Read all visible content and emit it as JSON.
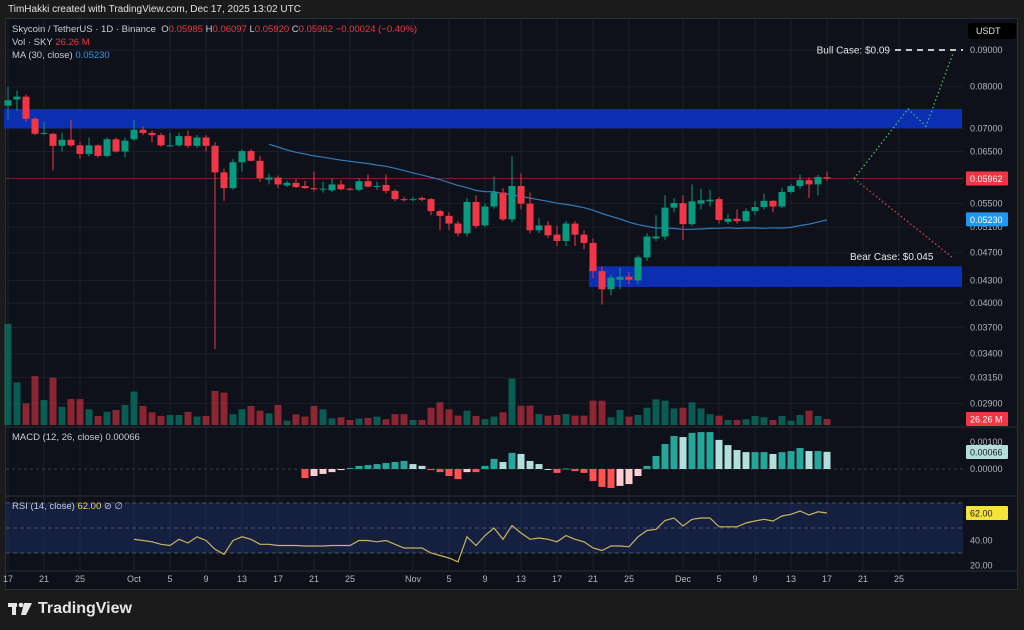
{
  "header": {
    "credit": "TimHakki created with TradingView.com, Dec 17, 2025 13:02 UTC"
  },
  "legend": {
    "symbol": "Skycoin / TetherUS · 1D · Binance",
    "o_label": "O",
    "o": "0.05985",
    "h_label": "H",
    "h": "0.06097",
    "l_label": "L",
    "l": "0.05920",
    "c_label": "C",
    "c": "0.05962",
    "change": "−0.00024 (−0.40%)",
    "vol_label": "Vol · SKY",
    "vol": "26.26 M",
    "ma_label": "MA (30, close)",
    "ma": "0.05230",
    "macd_label": "MACD (12, 26, close)",
    "macd": "0.00066",
    "rsi_label": "RSI (14, close)",
    "rsi": "62.00",
    "rsi_icons": "⊘ ∅"
  },
  "currency": "USDT",
  "brand": "TradingView",
  "colors": {
    "up": "#089981",
    "down": "#f23645",
    "ma": "#3179b8",
    "zone": "#0b2fb0",
    "rsi": "#c9b458",
    "macd_up_strong": "#26a69a",
    "macd_up_weak": "#b2dfdb",
    "macd_down_strong": "#ff5252",
    "macd_down_weak": "#ffcdd2"
  },
  "chart_data": {
    "type": "candlestick",
    "interval": "1D",
    "start_date": "2025-09-17",
    "price_scale": "log",
    "price_ticks": [
      "0.09000",
      "0.08000",
      "0.07000",
      "0.06500",
      "0.05500",
      "0.05100",
      "0.04700",
      "0.04300",
      "0.04000",
      "0.03700",
      "0.03400",
      "0.03150",
      "0.02900"
    ],
    "time_ticks": [
      {
        "date": "2025-09-17",
        "label": "17"
      },
      {
        "date": "2025-09-21",
        "label": "21"
      },
      {
        "date": "2025-09-25",
        "label": "25"
      },
      {
        "date": "2025-10-01",
        "label": "Oct"
      },
      {
        "date": "2025-10-05",
        "label": "5"
      },
      {
        "date": "2025-10-09",
        "label": "9"
      },
      {
        "date": "2025-10-13",
        "label": "13"
      },
      {
        "date": "2025-10-17",
        "label": "17"
      },
      {
        "date": "2025-10-21",
        "label": "21"
      },
      {
        "date": "2025-10-25",
        "label": "25"
      },
      {
        "date": "2025-11-01",
        "label": "Nov"
      },
      {
        "date": "2025-11-05",
        "label": "5"
      },
      {
        "date": "2025-11-09",
        "label": "9"
      },
      {
        "date": "2025-11-13",
        "label": "13"
      },
      {
        "date": "2025-11-17",
        "label": "17"
      },
      {
        "date": "2025-11-21",
        "label": "21"
      },
      {
        "date": "2025-11-25",
        "label": "25"
      },
      {
        "date": "2025-12-01",
        "label": "Dec"
      },
      {
        "date": "2025-12-05",
        "label": "5"
      },
      {
        "date": "2025-12-09",
        "label": "9"
      },
      {
        "date": "2025-12-13",
        "label": "13"
      },
      {
        "date": "2025-12-17",
        "label": "17"
      },
      {
        "date": "2025-12-21",
        "label": "21"
      },
      {
        "date": "2025-12-25",
        "label": "25"
      }
    ],
    "ohlc": [
      [
        0.0753,
        0.08,
        0.072,
        0.0766
      ],
      [
        0.0768,
        0.079,
        0.074,
        0.0775
      ],
      [
        0.0775,
        0.078,
        0.0715,
        0.0722
      ],
      [
        0.0722,
        0.0725,
        0.0685,
        0.0688
      ],
      [
        0.0688,
        0.0715,
        0.0685,
        0.069
      ],
      [
        0.0688,
        0.069,
        0.0612,
        0.0662
      ],
      [
        0.0662,
        0.069,
        0.065,
        0.0675
      ],
      [
        0.0675,
        0.072,
        0.066,
        0.0663
      ],
      [
        0.0663,
        0.067,
        0.0635,
        0.0645
      ],
      [
        0.0645,
        0.068,
        0.064,
        0.0663
      ],
      [
        0.0663,
        0.0665,
        0.0638,
        0.0641
      ],
      [
        0.0641,
        0.068,
        0.0638,
        0.0676
      ],
      [
        0.0676,
        0.068,
        0.0648,
        0.065
      ],
      [
        0.065,
        0.068,
        0.0638,
        0.0673
      ],
      [
        0.0676,
        0.072,
        0.0672,
        0.0697
      ],
      [
        0.0697,
        0.0705,
        0.0685,
        0.069
      ],
      [
        0.069,
        0.0695,
        0.067,
        0.0685
      ],
      [
        0.0685,
        0.069,
        0.066,
        0.0663
      ],
      [
        0.0662,
        0.069,
        0.066,
        0.0663
      ],
      [
        0.0663,
        0.069,
        0.066,
        0.0683
      ],
      [
        0.0683,
        0.0695,
        0.0658,
        0.0662
      ],
      [
        0.0662,
        0.0685,
        0.0658,
        0.068
      ],
      [
        0.068,
        0.0685,
        0.065,
        0.0662
      ],
      [
        0.0662,
        0.067,
        0.0345,
        0.0608
      ],
      [
        0.0608,
        0.0615,
        0.0555,
        0.0578
      ],
      [
        0.0578,
        0.0635,
        0.0575,
        0.0628
      ],
      [
        0.0628,
        0.0655,
        0.061,
        0.0651
      ],
      [
        0.0651,
        0.0655,
        0.063,
        0.0631
      ],
      [
        0.0631,
        0.0641,
        0.059,
        0.0597
      ],
      [
        0.0594,
        0.0605,
        0.0585,
        0.0598
      ],
      [
        0.0598,
        0.0602,
        0.0578,
        0.0585
      ],
      [
        0.0583,
        0.0592,
        0.058,
        0.0588
      ],
      [
        0.0588,
        0.0595,
        0.0578,
        0.058
      ],
      [
        0.0582,
        0.0592,
        0.0577,
        0.0578
      ],
      [
        0.0578,
        0.061,
        0.0572,
        0.0576
      ],
      [
        0.0576,
        0.059,
        0.057,
        0.0577
      ],
      [
        0.0574,
        0.0597,
        0.0571,
        0.0585
      ],
      [
        0.0585,
        0.0593,
        0.0574,
        0.0576
      ],
      [
        0.0577,
        0.0579,
        0.0574,
        0.0575
      ],
      [
        0.0575,
        0.0597,
        0.0572,
        0.0591
      ],
      [
        0.0591,
        0.0604,
        0.0579,
        0.0581
      ],
      [
        0.0581,
        0.059,
        0.0575,
        0.0582
      ],
      [
        0.0584,
        0.0604,
        0.0568,
        0.0573
      ],
      [
        0.0573,
        0.0576,
        0.0554,
        0.0558
      ],
      [
        0.0558,
        0.0562,
        0.0554,
        0.0557
      ],
      [
        0.0557,
        0.0562,
        0.0554,
        0.0558
      ],
      [
        0.056,
        0.0563,
        0.0554,
        0.0557
      ],
      [
        0.0558,
        0.056,
        0.053,
        0.0537
      ],
      [
        0.0537,
        0.054,
        0.0505,
        0.0529
      ],
      [
        0.0529,
        0.0535,
        0.0505,
        0.0516
      ],
      [
        0.0516,
        0.052,
        0.0495,
        0.05
      ],
      [
        0.05,
        0.056,
        0.0495,
        0.0553
      ],
      [
        0.0553,
        0.0565,
        0.0508,
        0.0512
      ],
      [
        0.0513,
        0.055,
        0.051,
        0.0545
      ],
      [
        0.0545,
        0.06,
        0.0541,
        0.057
      ],
      [
        0.057,
        0.0578,
        0.052,
        0.0523
      ],
      [
        0.0523,
        0.064,
        0.0518,
        0.0582
      ],
      [
        0.0582,
        0.0606,
        0.054,
        0.055
      ],
      [
        0.055,
        0.057,
        0.05,
        0.0505
      ],
      [
        0.0505,
        0.0525,
        0.05,
        0.0513
      ],
      [
        0.0513,
        0.052,
        0.0493,
        0.0497
      ],
      [
        0.0498,
        0.0512,
        0.048,
        0.0488
      ],
      [
        0.0488,
        0.052,
        0.048,
        0.0516
      ],
      [
        0.0516,
        0.052,
        0.048,
        0.0498
      ],
      [
        0.0498,
        0.0505,
        0.0475,
        0.0485
      ],
      [
        0.0485,
        0.0492,
        0.0433,
        0.0443
      ],
      [
        0.0443,
        0.045,
        0.0398,
        0.0418
      ],
      [
        0.0418,
        0.0438,
        0.041,
        0.0434
      ],
      [
        0.0431,
        0.0448,
        0.0418,
        0.0435
      ],
      [
        0.0435,
        0.0442,
        0.0425,
        0.0431
      ],
      [
        0.043,
        0.0466,
        0.0425,
        0.0463
      ],
      [
        0.0463,
        0.05,
        0.0458,
        0.0495
      ],
      [
        0.0492,
        0.053,
        0.0488,
        0.0495
      ],
      [
        0.0495,
        0.0565,
        0.049,
        0.0543
      ],
      [
        0.0543,
        0.056,
        0.0535,
        0.0551
      ],
      [
        0.0551,
        0.0565,
        0.049,
        0.0515
      ],
      [
        0.0515,
        0.0585,
        0.0512,
        0.0554
      ],
      [
        0.055,
        0.0577,
        0.054,
        0.0556
      ],
      [
        0.0554,
        0.0575,
        0.0545,
        0.0557
      ],
      [
        0.0558,
        0.0562,
        0.0516,
        0.0522
      ],
      [
        0.0519,
        0.0532,
        0.0515,
        0.0524
      ],
      [
        0.0524,
        0.054,
        0.0516,
        0.052
      ],
      [
        0.052,
        0.0542,
        0.0518,
        0.0537
      ],
      [
        0.0537,
        0.0555,
        0.053,
        0.0544
      ],
      [
        0.0544,
        0.0568,
        0.054,
        0.0555
      ],
      [
        0.0555,
        0.0556,
        0.0535,
        0.0545
      ],
      [
        0.0545,
        0.0578,
        0.0542,
        0.0571
      ],
      [
        0.0571,
        0.0586,
        0.0568,
        0.0582
      ],
      [
        0.0582,
        0.0604,
        0.0577,
        0.0593
      ],
      [
        0.0593,
        0.0598,
        0.056,
        0.0585
      ],
      [
        0.0585,
        0.0603,
        0.0565,
        0.0599
      ],
      [
        0.05985,
        0.06097,
        0.0592,
        0.05962
      ]
    ],
    "volume_m": [
      445,
      187,
      95,
      215,
      110,
      208,
      80,
      114,
      114,
      69,
      40,
      58,
      66,
      88,
      147,
      84,
      56,
      40,
      44,
      44,
      58,
      37,
      40,
      150,
      142,
      47,
      69,
      84,
      63,
      51,
      88,
      19,
      47,
      37,
      84,
      69,
      29,
      34,
      22,
      28,
      31,
      37,
      25,
      48,
      48,
      22,
      22,
      76,
      100,
      69,
      41,
      63,
      40,
      26,
      37,
      56,
      205,
      85,
      85,
      48,
      41,
      44,
      48,
      41,
      41,
      107,
      107,
      34,
      66,
      37,
      44,
      76,
      113,
      107,
      73,
      76,
      100,
      73,
      48,
      41,
      22,
      22,
      25,
      40,
      34,
      22,
      40,
      19,
      44,
      63,
      40,
      26.26
    ],
    "ma_period": 30,
    "last_ma": 0.0523,
    "last_close": 0.05962,
    "last_volume": "26.26M",
    "macd_hist": [
      null,
      null,
      null,
      null,
      null,
      null,
      null,
      null,
      null,
      null,
      null,
      null,
      null,
      null,
      null,
      null,
      null,
      null,
      null,
      null,
      null,
      null,
      null,
      null,
      null,
      null,
      null,
      null,
      null,
      null,
      null,
      null,
      null,
      -0.00035,
      -0.00027,
      -0.00019,
      -0.00012,
      -4e-05,
      4e-05,
      0.00012,
      0.00015,
      0.00019,
      0.00023,
      0.00027,
      0.00031,
      0.00019,
      0.00012,
      -4e-05,
      -0.00012,
      -0.00027,
      -0.00039,
      -0.00012,
      -0.00012,
      0.00012,
      0.00039,
      0.00027,
      0.00062,
      0.00058,
      0.00031,
      0.00019,
      0.0,
      -0.00015,
      2e-05,
      -8e-05,
      -0.00015,
      -0.00046,
      -0.00069,
      -0.00073,
      -0.00065,
      -0.00058,
      -0.00027,
      0.00012,
      0.0005,
      0.00096,
      0.00127,
      0.00123,
      0.00139,
      0.00142,
      0.00142,
      0.00112,
      0.00092,
      0.00073,
      0.00065,
      0.00065,
      0.00065,
      0.00058,
      0.00065,
      0.00069,
      0.00081,
      0.00069,
      0.00069,
      0.00066
    ],
    "macd_ticks": [
      "0.00100",
      "0.00000"
    ],
    "rsi": [
      null,
      null,
      null,
      null,
      null,
      null,
      null,
      null,
      null,
      null,
      null,
      null,
      null,
      null,
      41,
      40,
      39,
      37,
      36,
      41,
      38,
      43,
      40,
      33,
      29,
      40,
      43,
      41,
      37,
      37,
      36,
      36,
      36,
      35.6,
      35.6,
      35.6,
      36,
      36,
      36,
      40,
      40,
      39,
      40,
      37,
      34,
      34,
      34,
      30,
      28,
      26,
      23,
      43,
      36,
      44,
      50,
      41,
      52,
      46,
      41,
      42,
      41,
      39,
      44,
      41,
      39,
      34,
      32,
      35.6,
      35.6,
      35,
      43,
      48,
      49,
      56,
      58,
      51.6,
      57,
      58,
      58,
      51,
      51,
      51,
      54,
      55.6,
      57,
      55.6,
      59.6,
      61,
      63.6,
      60.4,
      63,
      62
    ],
    "rsi_bands": [
      70,
      50,
      30
    ],
    "rsi_ticks": [
      "40.00",
      "20.00"
    ],
    "zones": [
      {
        "from": "2025-09-17",
        "to": "2026-01-01",
        "top": 0.0745,
        "bottom": 0.07
      },
      {
        "from": "2025-11-21",
        "to": "2026-01-01",
        "top": 0.045,
        "bottom": 0.0421
      }
    ],
    "projections": {
      "bull": {
        "label": "Bull Case: $0.09",
        "target": 0.09,
        "path": [
          [
            "2025-12-20",
            0.0596
          ],
          [
            "2025-12-26",
            0.0745
          ],
          [
            "2025-12-28",
            0.0705
          ],
          [
            "2025-12-31",
            0.089
          ]
        ]
      },
      "bear": {
        "label": "Bear Case: $0.045",
        "target": 0.045,
        "path": [
          [
            "2025-12-20",
            0.0596
          ],
          [
            "2025-12-31",
            0.0462
          ]
        ]
      }
    }
  }
}
